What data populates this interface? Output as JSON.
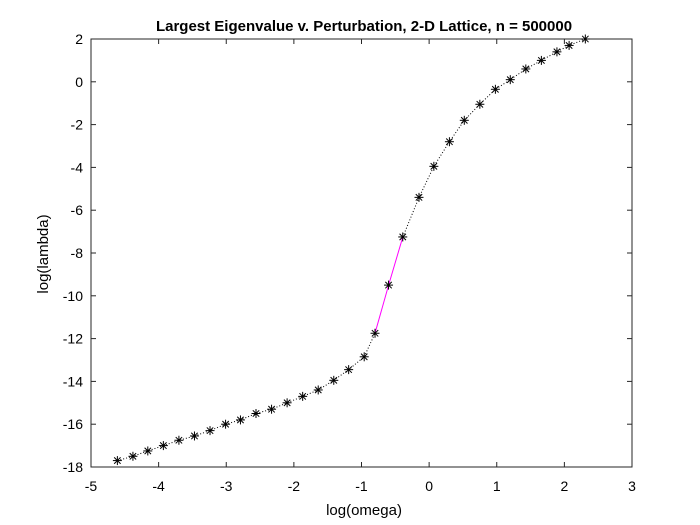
{
  "chart_data": {
    "type": "line",
    "title": "Largest Eigenvalue v. Perturbation, 2-D Lattice, n = 500000",
    "xlabel": "log(omega)",
    "ylabel": "log(lambda)",
    "xlim": [
      -5,
      3
    ],
    "ylim": [
      -18,
      2
    ],
    "xticks": [
      -5,
      -4,
      -3,
      -2,
      -1,
      0,
      1,
      2,
      3
    ],
    "yticks": [
      -18,
      -16,
      -14,
      -12,
      -10,
      -8,
      -6,
      -4,
      -2,
      0,
      2
    ],
    "grid": false,
    "marker": "asterisk",
    "x": [
      -4.61,
      -4.38,
      -4.16,
      -3.93,
      -3.7,
      -3.47,
      -3.24,
      -3.01,
      -2.79,
      -2.56,
      -2.33,
      -2.1,
      -1.87,
      -1.64,
      -1.41,
      -1.19,
      -0.96,
      -0.8,
      -0.6,
      -0.39,
      -0.15,
      0.07,
      0.3,
      0.52,
      0.75,
      0.98,
      1.2,
      1.43,
      1.66,
      1.89,
      2.07,
      2.31
    ],
    "y": [
      -17.7,
      -17.5,
      -17.25,
      -17.0,
      -16.75,
      -16.55,
      -16.3,
      -16.0,
      -15.8,
      -15.5,
      -15.3,
      -15.0,
      -14.7,
      -14.4,
      -13.95,
      -13.45,
      -12.85,
      -11.75,
      -9.5,
      -7.25,
      -5.4,
      -3.95,
      -2.8,
      -1.8,
      -1.05,
      -0.35,
      0.1,
      0.6,
      1.0,
      1.4,
      1.7,
      2.0
    ],
    "series": [
      {
        "style": "dotted",
        "color": "#000000",
        "index_range": [
          0,
          17
        ]
      },
      {
        "style": "solid",
        "color": "#ff00ff",
        "index_range": [
          17,
          19
        ]
      },
      {
        "style": "dotted",
        "color": "#000000",
        "index_range": [
          19,
          31
        ]
      }
    ]
  }
}
